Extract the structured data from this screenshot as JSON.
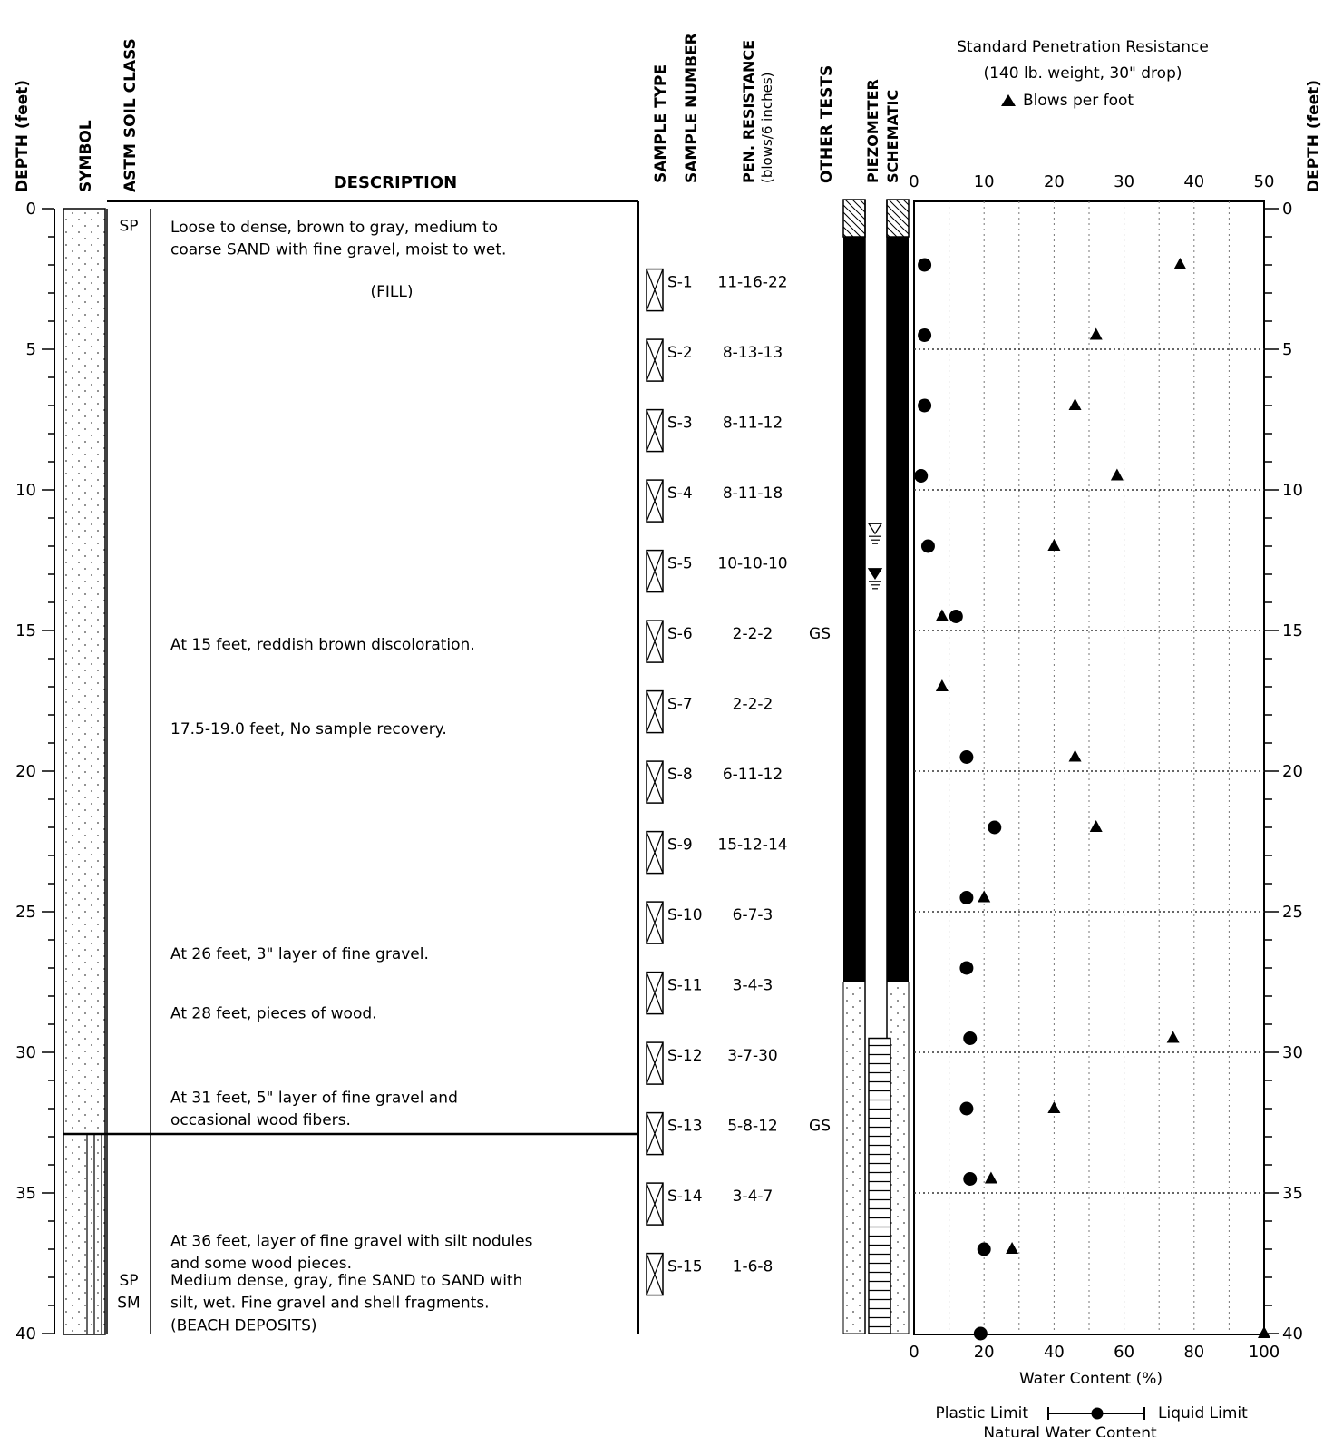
{
  "headers": {
    "depth_left": "DEPTH (feet)",
    "symbol": "SYMBOL",
    "astm": "ASTM SOIL CLASS",
    "description": "DESCRIPTION",
    "sample_type": "SAMPLE TYPE",
    "sample_number": "SAMPLE NUMBER",
    "pen_resistance_1": "PEN. RESISTANCE",
    "pen_resistance_2": "(blows/6 inches)",
    "other_tests": "OTHER TESTS",
    "piezometer_1": "PIEZOMETER",
    "piezometer_2": "SCHEMATIC",
    "depth_right": "DEPTH (feet)"
  },
  "chart_header": {
    "line1": "Standard Penetration Resistance",
    "line2": "(140 lb. weight, 30\" drop)",
    "legend": "Blows per foot"
  },
  "depth_ticks": [
    "0",
    "5",
    "10",
    "15",
    "20",
    "25",
    "30",
    "35",
    "40"
  ],
  "soil_classes": [
    {
      "label": "SP",
      "depth": 0.3
    },
    {
      "label": "SP",
      "depth": 37.8
    },
    {
      "label": "SM",
      "depth": 38.6
    }
  ],
  "descriptions": [
    {
      "text": "Loose to dense, brown to gray, medium to",
      "depth": 0.35
    },
    {
      "text": "coarse SAND with fine gravel, moist to wet.",
      "depth": 1.15
    },
    {
      "text": "(FILL)",
      "depth": 2.65,
      "center": true
    },
    {
      "text": "At 15 feet, reddish brown discoloration.",
      "depth": 15.2
    },
    {
      "text": "17.5-19.0 feet, No sample recovery.",
      "depth": 18.2
    },
    {
      "text": "At 26 feet, 3\" layer of fine gravel.",
      "depth": 26.2
    },
    {
      "text": "At 28 feet, pieces of wood.",
      "depth": 28.3
    },
    {
      "text": "At 31 feet, 5\" layer of fine gravel and",
      "depth": 31.3
    },
    {
      "text": "occasional wood fibers.",
      "depth": 32.1
    },
    {
      "text": "At 36 feet, layer of fine gravel with silt nodules",
      "depth": 36.4
    },
    {
      "text": "and some wood pieces.",
      "depth": 37.2
    },
    {
      "text": "Medium dense, gray, fine SAND to SAND with",
      "depth": 37.8
    },
    {
      "text": "silt, wet. Fine gravel and shell fragments.",
      "depth": 38.6
    },
    {
      "text": "(BEACH DEPOSITS)",
      "depth": 39.4
    }
  ],
  "samples": [
    {
      "number": "S-1",
      "blows": "11-16-22",
      "depth": 2.6
    },
    {
      "number": "S-2",
      "blows": "8-13-13",
      "depth": 5.1
    },
    {
      "number": "S-3",
      "blows": "8-11-12",
      "depth": 7.6
    },
    {
      "number": "S-4",
      "blows": "8-11-18",
      "depth": 10.1
    },
    {
      "number": "S-5",
      "blows": "10-10-10",
      "depth": 12.6
    },
    {
      "number": "S-6",
      "blows": "2-2-2",
      "depth": 15.1
    },
    {
      "number": "S-7",
      "blows": "2-2-2",
      "depth": 17.6
    },
    {
      "number": "S-8",
      "blows": "6-11-12",
      "depth": 20.1
    },
    {
      "number": "S-9",
      "blows": "15-12-14",
      "depth": 22.6
    },
    {
      "number": "S-10",
      "blows": "6-7-3",
      "depth": 25.1
    },
    {
      "number": "S-11",
      "blows": "3-4-3",
      "depth": 27.6
    },
    {
      "number": "S-12",
      "blows": "3-7-30",
      "depth": 30.1
    },
    {
      "number": "S-13",
      "blows": "5-8-12",
      "depth": 32.6
    },
    {
      "number": "S-14",
      "blows": "3-4-7",
      "depth": 35.1
    },
    {
      "number": "S-15",
      "blows": "1-6-8",
      "depth": 37.6
    }
  ],
  "other_tests": [
    {
      "label": "GS",
      "depth": 15.1
    },
    {
      "label": "GS",
      "depth": 32.6
    }
  ],
  "chart_data": {
    "type": "scatter",
    "y_axis": {
      "label": "DEPTH (feet)",
      "range": [
        0,
        40
      ],
      "ticks": [
        0,
        5,
        10,
        15,
        20,
        25,
        30,
        35,
        40
      ],
      "inverted": true
    },
    "top_axis": {
      "range": [
        0,
        50
      ],
      "ticks": [
        "0",
        "10",
        "20",
        "30",
        "40",
        "50"
      ]
    },
    "bottom_axis": {
      "label": "Water Content (%)",
      "range": [
        0,
        100
      ],
      "ticks": [
        "0",
        "20",
        "40",
        "60",
        "80",
        "100"
      ]
    },
    "blows_per_foot": [
      {
        "depth": 2.0,
        "value": 38
      },
      {
        "depth": 4.5,
        "value": 26
      },
      {
        "depth": 7.0,
        "value": 23
      },
      {
        "depth": 9.5,
        "value": 29
      },
      {
        "depth": 12.0,
        "value": 20
      },
      {
        "depth": 14.5,
        "value": 4
      },
      {
        "depth": 17.0,
        "value": 4
      },
      {
        "depth": 19.5,
        "value": 23
      },
      {
        "depth": 22.0,
        "value": 26
      },
      {
        "depth": 24.5,
        "value": 10
      },
      {
        "depth": 29.5,
        "value": 37
      },
      {
        "depth": 32.0,
        "value": 20
      },
      {
        "depth": 34.5,
        "value": 11
      },
      {
        "depth": 37.0,
        "value": 14
      },
      {
        "depth": 40.0,
        "value": 50
      }
    ],
    "natural_water_content": [
      {
        "depth": 2.0,
        "value": 3
      },
      {
        "depth": 4.5,
        "value": 3
      },
      {
        "depth": 7.0,
        "value": 3
      },
      {
        "depth": 9.5,
        "value": 2
      },
      {
        "depth": 12.0,
        "value": 4
      },
      {
        "depth": 14.5,
        "value": 12
      },
      {
        "depth": 19.5,
        "value": 15
      },
      {
        "depth": 22.0,
        "value": 23
      },
      {
        "depth": 24.5,
        "value": 15
      },
      {
        "depth": 27.0,
        "value": 15
      },
      {
        "depth": 29.5,
        "value": 16
      },
      {
        "depth": 32.0,
        "value": 15
      },
      {
        "depth": 34.5,
        "value": 16
      },
      {
        "depth": 37.0,
        "value": 20
      },
      {
        "depth": 40.0,
        "value": 19
      }
    ],
    "groundwater_levels": [
      11.2,
      12.8
    ],
    "piezometer": {
      "seal_to": 1.0,
      "solid_to": 27.5,
      "screen_from": 29.5,
      "screen_to": 40.0
    },
    "legend": {
      "plastic_limit": "Plastic Limit",
      "liquid_limit": "Liquid Limit",
      "natural_water_content": "Natural Water Content"
    }
  }
}
